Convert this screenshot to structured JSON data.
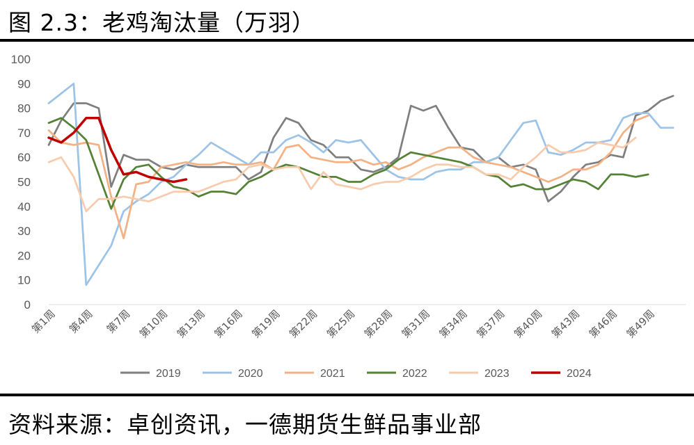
{
  "title": "图 2.3：老鸡淘汰量（万羽）",
  "source": "资料来源：卓创资讯，一德期货生鲜品事业部",
  "chart_data": {
    "type": "line",
    "ylim": [
      0,
      100
    ],
    "yticks": [
      0,
      10,
      20,
      30,
      40,
      50,
      60,
      70,
      80,
      90,
      100
    ],
    "xlim": [
      1,
      52
    ],
    "xticks": [
      1,
      4,
      7,
      10,
      13,
      16,
      19,
      22,
      25,
      28,
      31,
      34,
      37,
      40,
      43,
      46,
      49
    ],
    "xtick_labels": [
      "第1周",
      "第4周",
      "第7周",
      "第10周",
      "第13周",
      "第16周",
      "第19周",
      "第22周",
      "第25周",
      "第28周",
      "第31周",
      "第34周",
      "第37周",
      "第40周",
      "第43周",
      "第46周",
      "第49周"
    ],
    "grid": false,
    "legend_position": "bottom",
    "series": [
      {
        "name": "2019",
        "color": "#7f7f7f",
        "values": [
          65,
          75,
          82,
          82,
          80,
          48,
          61,
          59,
          59,
          56,
          55,
          57,
          56,
          56,
          56,
          56,
          51,
          54,
          68,
          76,
          74,
          67,
          65,
          60,
          60,
          55,
          54,
          56,
          60,
          81,
          79,
          81,
          72,
          64,
          63,
          58,
          60,
          56,
          57,
          55,
          42,
          46,
          52,
          57,
          58,
          61,
          60,
          77,
          79,
          83,
          85,
          null
        ]
      },
      {
        "name": "2020",
        "color": "#9dc3e6",
        "values": [
          82,
          86,
          90,
          8,
          16,
          24,
          38,
          42,
          45,
          50,
          52,
          57,
          61,
          66,
          63,
          60,
          57,
          62,
          62,
          67,
          69,
          66,
          62,
          67,
          66,
          67,
          61,
          55,
          52,
          51,
          51,
          54,
          55,
          55,
          58,
          58,
          60,
          67,
          74,
          75,
          62,
          61,
          63,
          66,
          66,
          67,
          76,
          78,
          78,
          72,
          72,
          null
        ]
      },
      {
        "name": "2021",
        "color": "#f4b183",
        "values": [
          71,
          66,
          65,
          66,
          65,
          44,
          27,
          49,
          50,
          56,
          57,
          58,
          57,
          57,
          58,
          57,
          57,
          58,
          55,
          64,
          65,
          60,
          59,
          58,
          58,
          59,
          57,
          58,
          55,
          57,
          60,
          62,
          64,
          64,
          60,
          58,
          57,
          56,
          54,
          52,
          50,
          52,
          55,
          55,
          57,
          62,
          70,
          75,
          77,
          null,
          null,
          null
        ]
      },
      {
        "name": "2022",
        "color": "#548235",
        "values": [
          74,
          76,
          72,
          67,
          53,
          39,
          51,
          56,
          57,
          52,
          48,
          47,
          44,
          46,
          46,
          45,
          50,
          52,
          55,
          57,
          56,
          54,
          52,
          52,
          50,
          50,
          53,
          55,
          59,
          62,
          61,
          60,
          59,
          58,
          56,
          53,
          52,
          48,
          49,
          47,
          47,
          49,
          51,
          50,
          47,
          53,
          53,
          52,
          53,
          null,
          null,
          null
        ]
      },
      {
        "name": "2023",
        "color": "#f8cbad",
        "values": [
          58,
          60,
          52,
          38,
          43,
          43,
          44,
          43,
          42,
          44,
          46,
          46,
          46,
          48,
          50,
          51,
          56,
          57,
          55,
          56,
          56,
          47,
          54,
          49,
          48,
          47,
          49,
          50,
          50,
          52,
          55,
          57,
          57,
          56,
          56,
          53,
          53,
          51,
          56,
          60,
          65,
          62,
          62,
          63,
          66,
          65,
          64,
          68,
          null,
          null,
          null,
          null
        ]
      },
      {
        "name": "2024",
        "color": "#c00000",
        "values": [
          68,
          66,
          70,
          76,
          76,
          63,
          53,
          54,
          52,
          51,
          50,
          51,
          null,
          null,
          null,
          null,
          null,
          null,
          null,
          null,
          null,
          null,
          null,
          null,
          null,
          null,
          null,
          null,
          null,
          null,
          null,
          null,
          null,
          null,
          null,
          null,
          null,
          null,
          null,
          null,
          null,
          null,
          null,
          null,
          null,
          null,
          null,
          null,
          null,
          null,
          null,
          null
        ]
      }
    ]
  }
}
